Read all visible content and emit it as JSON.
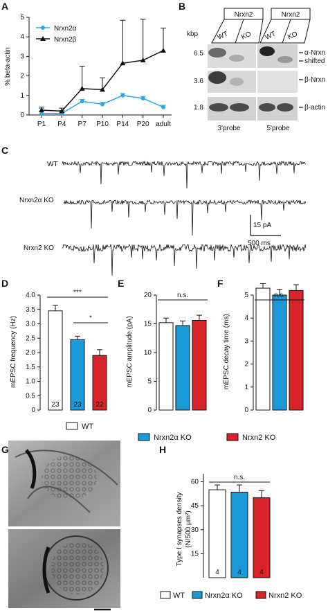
{
  "panels": {
    "A": "A",
    "B": "B",
    "C": "C",
    "D": "D",
    "E": "E",
    "F": "F",
    "G": "G",
    "H": "H"
  },
  "colors": {
    "alpha": "#2ba8e0",
    "beta": "#111111",
    "wt": "#ffffff",
    "alpha_ko": "#1b9ad8",
    "nrxn2_ko": "#d8232a"
  },
  "panel_B": {
    "group_labels": [
      "Nrxn2",
      "Nrxn2"
    ],
    "lane_labels": [
      "WT",
      "KO",
      "WT",
      "KO"
    ],
    "kbp_label": "kbp",
    "sizes": [
      "6.5",
      "3.6",
      "1.8"
    ],
    "band_labels": [
      "α-Nrxn",
      "shifted",
      "β-Nrxn",
      "β-actin"
    ],
    "probes": [
      "3'probe",
      "5'probe"
    ]
  },
  "panel_C": {
    "traces": [
      "WT",
      "Nrxn2α KO",
      "Nrxn2 KO"
    ],
    "scale_y": "15 pA",
    "scale_x": "500 ms"
  },
  "legend_DEF": [
    "WT",
    "Nrxn2α KO",
    "Nrxn2 KO"
  ],
  "legend_H": [
    "WT",
    "Nrxn2α KO",
    "Nrxn2 KO"
  ],
  "chart_data": [
    {
      "type": "line",
      "panel": "A",
      "ylabel": "% beta-actin",
      "categories": [
        "P1",
        "P4",
        "P7",
        "P10",
        "P14",
        "P20",
        "adult"
      ],
      "yticks": [
        "0",
        "1",
        "2",
        "3",
        "4",
        "5"
      ],
      "ylim": [
        0,
        5
      ],
      "series": [
        {
          "name": "Nrxn2α",
          "values": [
            0.08,
            0.08,
            0.7,
            0.55,
            1.0,
            0.85,
            0.4
          ],
          "err": [
            0.25,
            0.15,
            0.1,
            0.1,
            0.1,
            0.1,
            0.1
          ]
        },
        {
          "name": "Nrxn2β",
          "values": [
            0.25,
            0.2,
            1.35,
            1.3,
            2.65,
            2.8,
            3.3
          ],
          "err": [
            0.15,
            0.15,
            1.15,
            0.6,
            2.2,
            2.1,
            1.15
          ]
        }
      ]
    },
    {
      "type": "bar",
      "panel": "D",
      "ylabel": "mEPSC frequency (Hz)",
      "yticks": [
        "0",
        "0.5",
        "1.0",
        "1.5",
        "2.0",
        "2.5",
        "3.0",
        "3.5",
        "4.0"
      ],
      "ylim": [
        0,
        4.0
      ],
      "values": [
        3.45,
        2.45,
        1.9
      ],
      "err": [
        0.2,
        0.12,
        0.2
      ],
      "n_labels": [
        "23",
        "23",
        "22"
      ],
      "sig": [
        "***",
        "*"
      ]
    },
    {
      "type": "bar",
      "panel": "E",
      "ylabel": "mEPSC amplitude (pA)",
      "yticks": [
        "0",
        "5",
        "10",
        "15",
        "20"
      ],
      "ylim": [
        0,
        20
      ],
      "values": [
        15.2,
        14.7,
        15.6
      ],
      "err": [
        0.8,
        0.8,
        0.9
      ],
      "sig": [
        "n.s."
      ]
    },
    {
      "type": "bar",
      "panel": "F",
      "ylabel": "mEPSC decay time (ms)",
      "yticks": [
        "0",
        "1",
        "2",
        "3",
        "4",
        "5"
      ],
      "ylim": [
        0,
        5
      ],
      "values": [
        5.3,
        5.0,
        5.2
      ],
      "err": [
        0.2,
        0.25,
        0.25
      ],
      "sig": [
        "n.s."
      ]
    },
    {
      "type": "bar",
      "panel": "H",
      "ylabel": "Type I synapses density (N/500 µm²)",
      "yticks": [
        "15",
        "30",
        "45",
        "60"
      ],
      "ylim": [
        0,
        65
      ],
      "values": [
        55,
        53.5,
        50
      ],
      "err": [
        3,
        4.5,
        4.5
      ],
      "n_labels": [
        "4",
        "4",
        "4"
      ],
      "sig": [
        "n.s."
      ]
    }
  ]
}
